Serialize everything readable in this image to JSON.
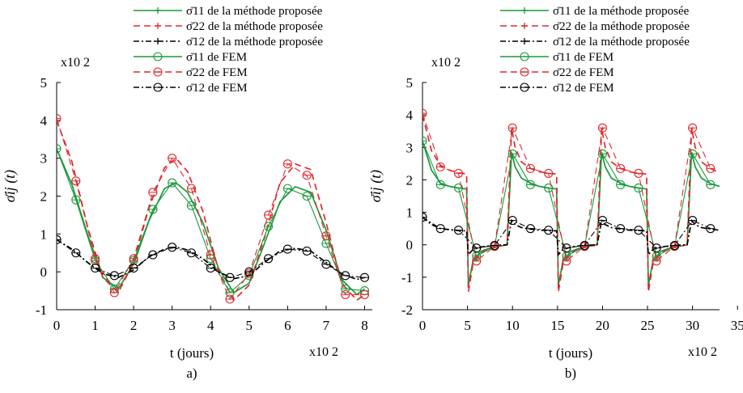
{
  "colors": {
    "green": "#1a9a3c",
    "red": "#e0282e",
    "black": "#000000"
  },
  "chart_data": [
    {
      "type": "line",
      "panel_label": "a)",
      "xlabel": "t (jours)",
      "ylabel": "σ̄ij (t)",
      "x_multiplier": "x10 2",
      "y_multiplier": "x10 2",
      "xlim": [
        0,
        8.2
      ],
      "ylim": [
        -1,
        5
      ],
      "xticks": [
        "0",
        "1",
        "2",
        "3",
        "4",
        "5",
        "6",
        "7",
        "8"
      ],
      "yticks": [
        "-1",
        "0",
        "1",
        "2",
        "3",
        "4",
        "5"
      ],
      "legend": [
        {
          "label": "σ̄11 de la méthode proposée",
          "color": "#1a9a3c",
          "dash": "solid",
          "marker": "plus"
        },
        {
          "label": "σ̄22 de la méthode proposée",
          "color": "#e0282e",
          "dash": "dashed",
          "marker": "plus"
        },
        {
          "label": "σ̄12 de la méthode proposée",
          "color": "#000000",
          "dash": "dashdot",
          "marker": "plus"
        },
        {
          "label": "σ̄11 de FEM",
          "color": "#1a9a3c",
          "dash": "solid",
          "marker": "circle"
        },
        {
          "label": "σ̄22 de FEM",
          "color": "#e0282e",
          "dash": "dashed",
          "marker": "circle"
        },
        {
          "label": "σ̄12 de FEM",
          "color": "#000000",
          "dash": "dashdot",
          "marker": "circle"
        }
      ],
      "series": [
        {
          "name": "σ̄11 de la méthode proposée",
          "x": [
            0,
            0.4,
            0.8,
            1.2,
            1.6,
            2.0,
            2.4,
            2.8,
            3.1,
            3.4,
            3.8,
            4.2,
            4.6,
            5.0,
            5.4,
            5.8,
            6.2,
            6.6,
            7.0,
            7.4,
            7.8,
            8.0
          ],
          "y": [
            3.25,
            2.3,
            1.0,
            -0.15,
            -0.45,
            0.2,
            1.35,
            2.2,
            2.35,
            2.1,
            1.3,
            0.1,
            -0.55,
            -0.3,
            0.75,
            1.85,
            2.25,
            2.1,
            1.1,
            -0.2,
            -0.6,
            -0.45
          ]
        },
        {
          "name": "σ̄22 de la méthode proposée",
          "x": [
            0,
            0.4,
            0.8,
            1.2,
            1.6,
            2.0,
            2.4,
            2.8,
            3.1,
            3.4,
            3.8,
            4.2,
            4.6,
            5.0,
            5.4,
            5.8,
            6.2,
            6.6,
            7.0,
            7.4,
            7.8,
            8.0
          ],
          "y": [
            4.0,
            2.9,
            1.2,
            -0.15,
            -0.55,
            0.25,
            1.7,
            2.75,
            3.0,
            2.65,
            1.6,
            0.05,
            -0.75,
            -0.35,
            0.9,
            2.35,
            2.85,
            2.7,
            1.3,
            -0.3,
            -0.75,
            -0.6
          ]
        },
        {
          "name": "σ̄12 de la méthode proposée",
          "x": [
            0,
            0.4,
            0.8,
            1.2,
            1.6,
            2.0,
            2.4,
            2.8,
            3.1,
            3.4,
            3.8,
            4.2,
            4.6,
            5.0,
            5.4,
            5.8,
            6.2,
            6.6,
            7.0,
            7.4,
            7.8,
            8.0
          ],
          "y": [
            0.85,
            0.6,
            0.25,
            -0.05,
            -0.15,
            0.05,
            0.4,
            0.6,
            0.65,
            0.58,
            0.35,
            0.0,
            -0.18,
            -0.1,
            0.25,
            0.55,
            0.62,
            0.55,
            0.25,
            -0.05,
            -0.2,
            -0.15
          ]
        },
        {
          "name": "σ̄11 de FEM",
          "x": [
            0,
            0.5,
            1.0,
            1.5,
            2.0,
            2.5,
            3.0,
            3.5,
            4.0,
            4.5,
            5.0,
            5.5,
            6.0,
            6.5,
            7.0,
            7.5,
            8.0
          ],
          "y": [
            3.25,
            1.9,
            0.3,
            -0.45,
            0.3,
            1.65,
            2.35,
            1.75,
            0.35,
            -0.55,
            -0.1,
            1.2,
            2.2,
            2.0,
            0.75,
            -0.45,
            -0.5
          ]
        },
        {
          "name": "σ̄22 de FEM",
          "x": [
            0,
            0.5,
            1.0,
            1.5,
            2.0,
            2.5,
            3.0,
            3.5,
            4.0,
            4.5,
            5.0,
            5.5,
            6.0,
            6.5,
            7.0,
            7.5,
            8.0
          ],
          "y": [
            4.05,
            2.4,
            0.35,
            -0.55,
            0.35,
            2.1,
            3.0,
            2.2,
            0.45,
            -0.72,
            -0.05,
            1.5,
            2.85,
            2.55,
            0.95,
            -0.6,
            -0.6
          ]
        },
        {
          "name": "σ̄12 de FEM",
          "x": [
            0,
            0.5,
            1.0,
            1.5,
            2.0,
            2.5,
            3.0,
            3.5,
            4.0,
            4.5,
            5.0,
            5.5,
            6.0,
            6.5,
            7.0,
            7.5,
            8.0
          ],
          "y": [
            0.85,
            0.5,
            0.1,
            -0.1,
            0.1,
            0.45,
            0.65,
            0.5,
            0.1,
            -0.15,
            0.0,
            0.35,
            0.6,
            0.55,
            0.2,
            -0.1,
            -0.15
          ]
        }
      ]
    },
    {
      "type": "line",
      "panel_label": "b)",
      "xlabel": "t (jours)",
      "ylabel": "σ̄ij (t)",
      "x_multiplier": "x10 2",
      "y_multiplier": "x10 2",
      "xlim": [
        0,
        33
      ],
      "ylim": [
        -2,
        5
      ],
      "xticks": [
        "0",
        "5",
        "10",
        "15",
        "20",
        "25",
        "30",
        "35"
      ],
      "yticks": [
        "-2",
        "-1",
        "0",
        "1",
        "2",
        "3",
        "4",
        "5"
      ],
      "legend": [
        {
          "label": "σ̄11 de la méthode proposée",
          "color": "#1a9a3c",
          "dash": "solid",
          "marker": "plus"
        },
        {
          "label": "σ̄22 de la méthode proposée",
          "color": "#e0282e",
          "dash": "dashed",
          "marker": "plus"
        },
        {
          "label": "σ̄12 de la méthode proposée",
          "color": "#000000",
          "dash": "dashdot",
          "marker": "plus"
        },
        {
          "label": "σ̄11 de FEM",
          "color": "#1a9a3c",
          "dash": "solid",
          "marker": "circle"
        },
        {
          "label": "σ̄22 de FEM",
          "color": "#e0282e",
          "dash": "dashed",
          "marker": "circle"
        },
        {
          "label": "σ̄12 de FEM",
          "color": "#000000",
          "dash": "dashdot",
          "marker": "circle"
        }
      ],
      "series": [
        {
          "name": "σ̄11 de la méthode proposée",
          "x": [
            0,
            1,
            2,
            3,
            4,
            4.9,
            5.1,
            5.6,
            6.5,
            7.5,
            8.5,
            9.4,
            9.9,
            10.3,
            11,
            12,
            13,
            14,
            14.9,
            15.1,
            15.6,
            16.5,
            17.5,
            18.5,
            19.4,
            19.9,
            20.3,
            21,
            22,
            23,
            24,
            24.9,
            25.1,
            25.6,
            26.5,
            27.5,
            28.5,
            29.4,
            29.9,
            30.3,
            31,
            32,
            33
          ],
          "y": [
            3.2,
            2.3,
            1.9,
            1.8,
            1.75,
            1.72,
            -1.25,
            -0.5,
            -0.2,
            -0.1,
            -0.05,
            0.0,
            2.85,
            2.4,
            2.05,
            1.9,
            1.8,
            1.75,
            1.72,
            -1.25,
            -0.5,
            -0.2,
            -0.1,
            -0.05,
            0.0,
            2.85,
            2.4,
            2.05,
            1.9,
            1.8,
            1.75,
            1.72,
            -1.25,
            -0.5,
            -0.2,
            -0.1,
            -0.05,
            0.0,
            2.85,
            2.4,
            2.05,
            1.88,
            1.8
          ]
        },
        {
          "name": "σ̄22 de la méthode proposée",
          "x": [
            0,
            1,
            2,
            3,
            4,
            4.9,
            5.1,
            5.6,
            6.5,
            7.5,
            8.5,
            9.4,
            9.9,
            10.3,
            11,
            12,
            13,
            14,
            14.9,
            15.1,
            15.6,
            16.5,
            17.5,
            18.5,
            19.4,
            19.9,
            20.3,
            21,
            22,
            23,
            24,
            24.9,
            25.1,
            25.6,
            26.5,
            27.5,
            28.5,
            29.4,
            29.9,
            30.3,
            31,
            32,
            33
          ],
          "y": [
            4.0,
            2.9,
            2.45,
            2.3,
            2.22,
            2.18,
            -1.45,
            -0.6,
            -0.25,
            -0.12,
            -0.05,
            0.0,
            3.6,
            3.0,
            2.55,
            2.35,
            2.25,
            2.2,
            2.18,
            -1.45,
            -0.6,
            -0.25,
            -0.12,
            -0.05,
            0.0,
            3.6,
            3.0,
            2.55,
            2.35,
            2.25,
            2.2,
            2.18,
            -1.45,
            -0.6,
            -0.25,
            -0.12,
            -0.05,
            0.0,
            3.6,
            3.0,
            2.55,
            2.35,
            2.22
          ]
        },
        {
          "name": "σ̄12 de la méthode proposée",
          "x": [
            0,
            1,
            2,
            3,
            4,
            4.9,
            5.1,
            5.6,
            6.5,
            7.5,
            8.5,
            9.4,
            9.9,
            10.3,
            11,
            12,
            13,
            14,
            14.9,
            15.1,
            15.6,
            16.5,
            17.5,
            18.5,
            19.4,
            19.9,
            20.3,
            21,
            22,
            23,
            24,
            24.9,
            25.1,
            25.6,
            26.5,
            27.5,
            28.5,
            29.4,
            29.9,
            30.3,
            31,
            32,
            33
          ],
          "y": [
            0.85,
            0.62,
            0.5,
            0.46,
            0.44,
            0.43,
            -0.3,
            -0.15,
            -0.07,
            -0.03,
            -0.01,
            0.0,
            0.75,
            0.62,
            0.53,
            0.48,
            0.45,
            0.44,
            0.43,
            -0.3,
            -0.15,
            -0.07,
            -0.03,
            -0.01,
            0.0,
            0.75,
            0.62,
            0.53,
            0.48,
            0.45,
            0.44,
            0.43,
            -0.3,
            -0.15,
            -0.07,
            -0.03,
            -0.01,
            0.0,
            0.75,
            0.62,
            0.53,
            0.48,
            0.45
          ]
        },
        {
          "name": "σ̄11 de FEM",
          "x": [
            0,
            2,
            4,
            6,
            8,
            10,
            12,
            14,
            16,
            18,
            20,
            22,
            24,
            26,
            28,
            30,
            32
          ],
          "y": [
            3.2,
            1.85,
            1.75,
            -0.35,
            -0.05,
            2.8,
            1.85,
            1.75,
            -0.35,
            -0.05,
            2.8,
            1.85,
            1.75,
            -0.35,
            -0.05,
            2.8,
            1.85
          ]
        },
        {
          "name": "σ̄22 de FEM",
          "x": [
            0,
            2,
            4,
            6,
            8,
            10,
            12,
            14,
            16,
            18,
            20,
            22,
            24,
            26,
            28,
            30,
            32
          ],
          "y": [
            4.05,
            2.4,
            2.2,
            -0.5,
            -0.05,
            3.6,
            2.35,
            2.2,
            -0.5,
            -0.05,
            3.6,
            2.35,
            2.2,
            -0.5,
            -0.05,
            3.6,
            2.35
          ]
        },
        {
          "name": "σ̄12 de FEM",
          "x": [
            0,
            2,
            4,
            6,
            8,
            10,
            12,
            14,
            16,
            18,
            20,
            22,
            24,
            26,
            28,
            30,
            32
          ],
          "y": [
            0.85,
            0.5,
            0.45,
            -0.1,
            -0.02,
            0.75,
            0.5,
            0.45,
            -0.1,
            -0.02,
            0.75,
            0.5,
            0.45,
            -0.1,
            -0.02,
            0.75,
            0.5
          ]
        }
      ]
    }
  ]
}
